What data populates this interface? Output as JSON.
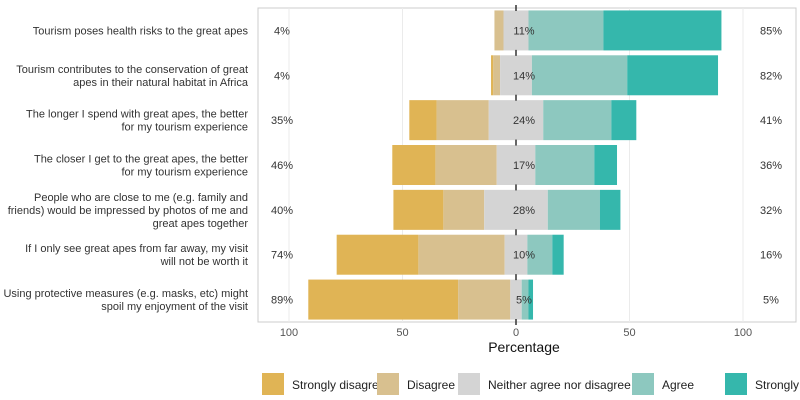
{
  "chart_data": {
    "type": "bar",
    "subtype": "diverging-stacked-horizontal",
    "xlabel": "Percentage",
    "xlim": [
      -100,
      100
    ],
    "xticks": [
      -100,
      -50,
      0,
      50,
      100
    ],
    "xtick_labels": [
      "100",
      "50",
      "0",
      "50",
      "100"
    ],
    "grid": true,
    "legend_position": "bottom",
    "series_names": [
      "Strongly disagree",
      "Disagree",
      "Neither agree nor disagree",
      "Agree",
      "Strongly agree"
    ],
    "colors": [
      "#e0b455",
      "#d8c08f",
      "#d4d4d4",
      "#8dc8bf",
      "#35b7ac"
    ],
    "categories": [
      "Tourism poses health risks to the great apes",
      "Tourism contributes to the conservation of great apes in their natural habitat in Africa",
      "The longer I spend with great apes, the better for my tourism experience",
      "The closer I get to the great apes, the better for my tourism experience",
      "People who are close to me (e.g. family and friends) would be impressed by photos of me and great apes together",
      "If I only see great apes from far away, my visit will not be worth it",
      "Using protective measures (e.g. masks, etc) might spoil my enjoyment of the visit"
    ],
    "category_lines": [
      [
        "Tourism poses health risks to the great apes"
      ],
      [
        "Tourism contributes to the conservation of great",
        "apes in their natural habitat in Africa"
      ],
      [
        "The longer I spend with great apes, the better",
        "for my tourism experience"
      ],
      [
        "The closer I get to the great apes, the better",
        "for my tourism experience"
      ],
      [
        "People who are close to me (e.g. family and",
        "friends) would be impressed by photos of me and",
        "great apes together"
      ],
      [
        "If I only see great apes from far away, my visit",
        "will not be worth it"
      ],
      [
        "Using protective measures (e.g. masks, etc) might",
        "spoil my enjoyment of the visit"
      ]
    ],
    "values": [
      [
        0,
        4,
        11,
        33,
        52
      ],
      [
        1,
        3,
        14,
        42,
        40
      ],
      [
        12,
        23,
        24,
        30,
        11
      ],
      [
        19,
        27,
        17,
        26,
        10
      ],
      [
        22,
        18,
        28,
        23,
        9
      ],
      [
        36,
        38,
        10,
        11,
        5
      ],
      [
        66,
        23,
        5,
        3,
        2
      ]
    ],
    "left_labels": [
      "4%",
      "4%",
      "35%",
      "46%",
      "40%",
      "74%",
      "89%"
    ],
    "center_labels": [
      "11%",
      "14%",
      "24%",
      "17%",
      "28%",
      "10%",
      "5%"
    ],
    "right_labels": [
      "85%",
      "82%",
      "41%",
      "36%",
      "32%",
      "16%",
      "5%"
    ]
  }
}
